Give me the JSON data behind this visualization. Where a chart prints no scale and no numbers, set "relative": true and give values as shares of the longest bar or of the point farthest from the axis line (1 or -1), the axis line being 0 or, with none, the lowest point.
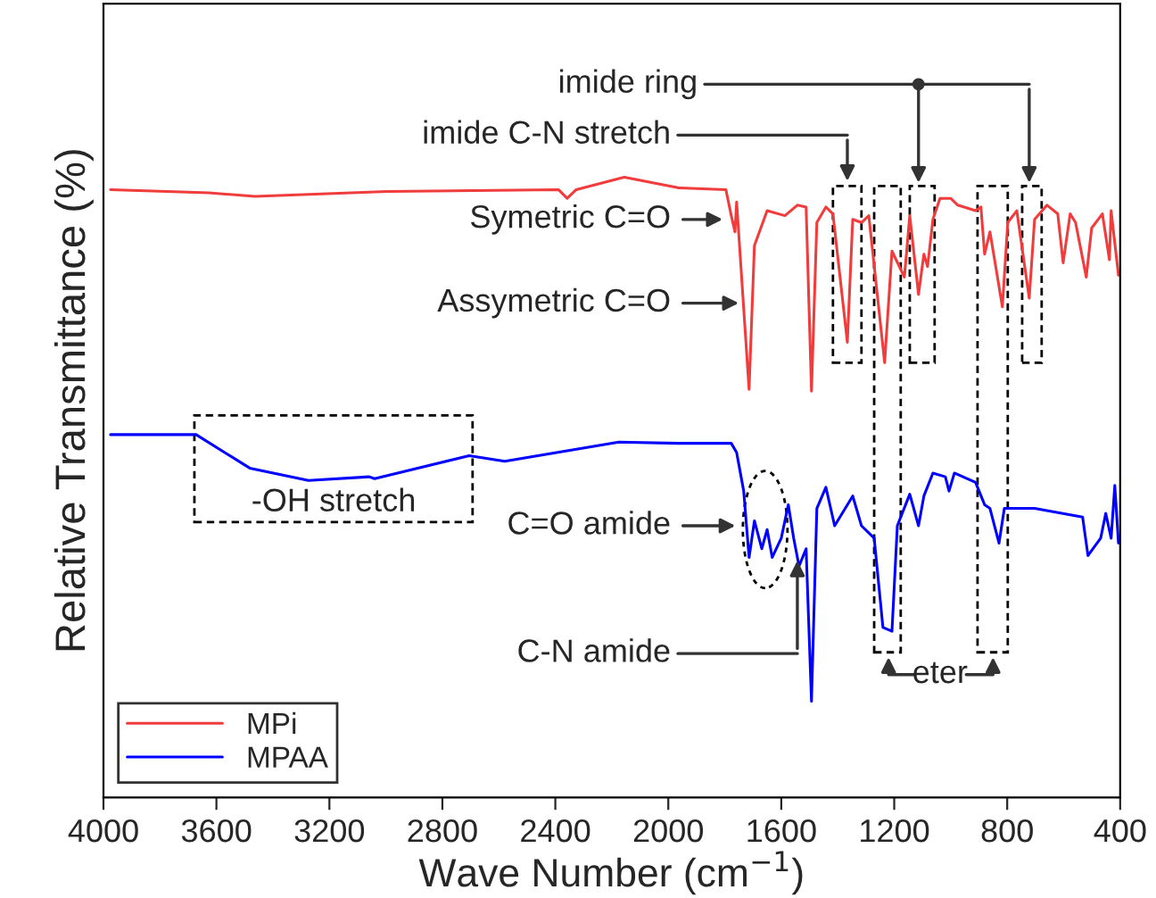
{
  "chart_data": {
    "type": "line",
    "relative": true,
    "xlabel": "Wave Number (cm$^{−1}$)",
    "ylabel": "Relative Transmittance (%)",
    "xlim": [
      4000,
      400
    ],
    "xticks": [
      4000,
      3600,
      3200,
      2800,
      2400,
      2000,
      1600,
      1200,
      800,
      400
    ],
    "grid": false,
    "legend": "bottom left",
    "marker": "none",
    "line_style": "solid",
    "x": [
      3975,
      3627,
      3463,
      2996,
      2389,
      2358,
      2326,
      2156,
      1966,
      1796,
      1777,
      1764,
      1758,
      1714,
      1695,
      1650,
      1587,
      1543,
      1512,
      1493,
      1474,
      1442,
      1417,
      1366,
      1347,
      1316,
      1290,
      1234,
      1208,
      1164,
      1145,
      1114,
      1095,
      1082,
      1063,
      1038,
      1000,
      975,
      912,
      893,
      880,
      861,
      817,
      798,
      766,
      722,
      703,
      659,
      621,
      602,
      577,
      558,
      520,
      501,
      463,
      438,
      432,
      406
    ],
    "series": [
      {
        "name": "MPi",
        "color": "#f03c3c",
        "values": [
          0.98,
          0.975,
          0.969,
          0.977,
          0.98,
          0.966,
          0.98,
          1.0,
          0.983,
          0.98,
          0.938,
          0.912,
          0.96,
          0.658,
          0.89,
          0.946,
          0.938,
          0.955,
          0.952,
          0.655,
          0.927,
          0.952,
          0.941,
          0.734,
          0.932,
          0.927,
          0.938,
          0.701,
          0.881,
          0.839,
          0.938,
          0.811,
          0.876,
          0.856,
          0.932,
          0.966,
          0.966,
          0.955,
          0.946,
          0.952,
          0.876,
          0.912,
          0.791,
          0.927,
          0.946,
          0.805,
          0.932,
          0.955,
          0.941,
          0.862,
          0.941,
          0.927,
          0.839,
          0.918,
          0.941,
          0.867,
          0.946,
          0.842
        ]
      },
      {
        "name": "MPAA",
        "color": "#0000ff",
        "x": [
          3975,
          3672,
          3482,
          3274,
          3059,
          3040,
          2705,
          2579,
          2175,
          1966,
          1777,
          1758,
          1733,
          1714,
          1695,
          1669,
          1650,
          1632,
          1600,
          1575,
          1556,
          1537,
          1512,
          1493,
          1474,
          1442,
          1411,
          1347,
          1316,
          1271,
          1240,
          1208,
          1189,
          1145,
          1114,
          1095,
          1063,
          1019,
          1006,
          987,
          912,
          880,
          861,
          829,
          810,
          703,
          533,
          514,
          469,
          451,
          432,
          419,
          406
        ],
        "values": [
          0.585,
          0.585,
          0.531,
          0.511,
          0.517,
          0.514,
          0.551,
          0.542,
          0.573,
          0.571,
          0.571,
          0.556,
          0.494,
          0.387,
          0.446,
          0.401,
          0.432,
          0.387,
          0.418,
          0.472,
          0.418,
          0.373,
          0.401,
          0.155,
          0.466,
          0.5,
          0.438,
          0.486,
          0.438,
          0.418,
          0.274,
          0.268,
          0.438,
          0.489,
          0.438,
          0.486,
          0.523,
          0.517,
          0.494,
          0.523,
          0.508,
          0.472,
          0.466,
          0.41,
          0.466,
          0.466,
          0.452,
          0.39,
          0.418,
          0.458,
          0.418,
          0.503,
          0.41
        ]
      }
    ],
    "annotations": [
      "imide ring",
      "imide C-N stretch",
      "Symetric C=O",
      "Assymetric C=O",
      "-OH stretch",
      "C=O amide",
      "C-N amide",
      "eter"
    ]
  }
}
